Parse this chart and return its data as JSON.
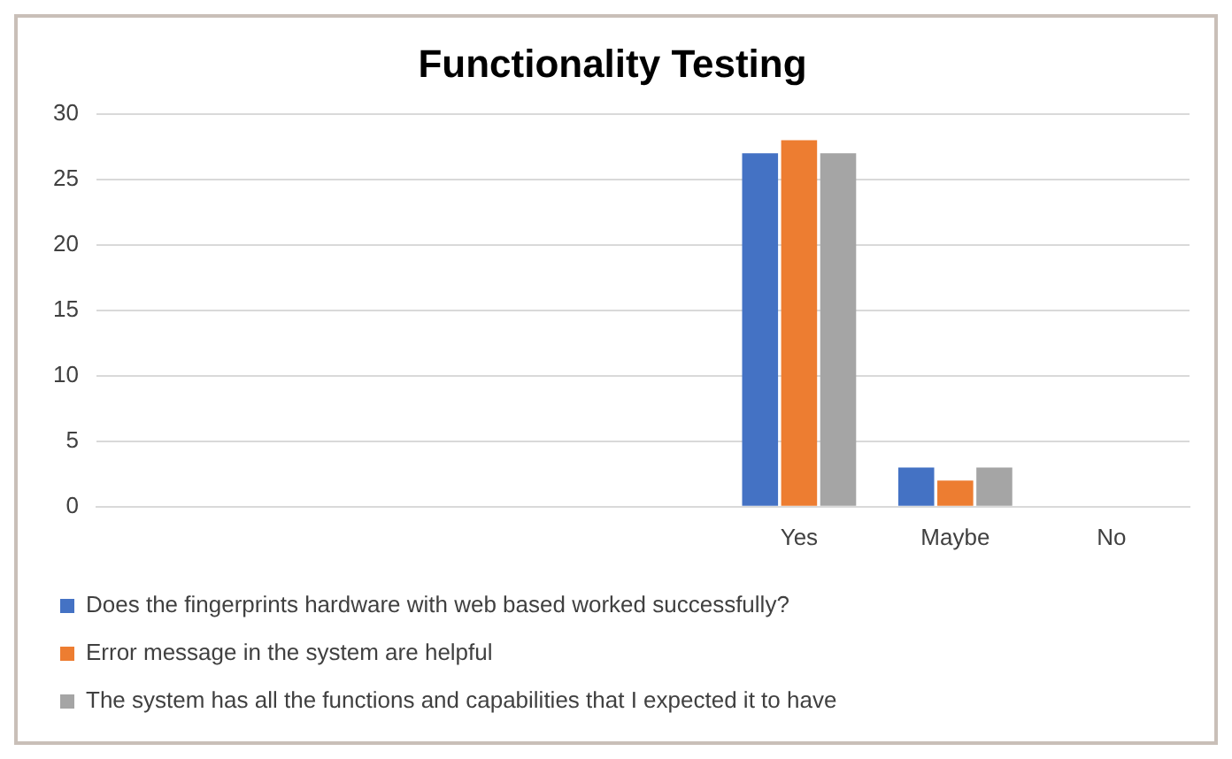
{
  "chart_data": {
    "type": "bar",
    "title": "Functionality Testing",
    "categories": [
      null,
      null,
      null,
      null,
      "Yes",
      "Maybe",
      "No"
    ],
    "series": [
      {
        "name": "Does the fingerprints hardware with web based worked successfully?",
        "color": "#4472c4",
        "values": [
          null,
          null,
          null,
          null,
          27,
          3,
          0
        ]
      },
      {
        "name": "Error message in the system are helpful",
        "color": "#ed7d31",
        "values": [
          null,
          null,
          null,
          null,
          28,
          2,
          0
        ]
      },
      {
        "name": "The system has all the functions and capabilities that I expected it to have",
        "color": "#a5a5a5",
        "values": [
          null,
          null,
          null,
          null,
          27,
          3,
          0
        ]
      }
    ],
    "ylim": [
      0,
      30
    ],
    "yticks": [
      0,
      5,
      10,
      15,
      20,
      25,
      30
    ],
    "grid": "y",
    "legend": "bottom"
  }
}
